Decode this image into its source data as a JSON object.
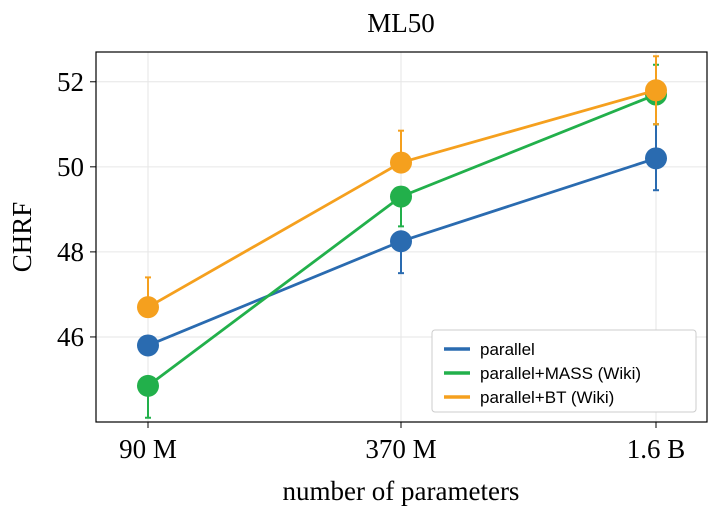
{
  "chart_data": {
    "type": "line",
    "title": "ML50",
    "xlabel": "number of parameters",
    "ylabel": "CHRF",
    "categories": [
      "90 M",
      "370 M",
      "1.6 B"
    ],
    "ylim": [
      44.0,
      52.7
    ],
    "yticks": [
      46,
      48,
      50,
      52
    ],
    "grid": true,
    "legend_position": "bottom-right",
    "series": [
      {
        "name": "parallel",
        "color": "#2a6bb0",
        "values": [
          45.8,
          48.25,
          50.2
        ],
        "err_low": [
          45.8,
          47.5,
          49.45
        ],
        "err_high": [
          45.8,
          48.25,
          51.0
        ]
      },
      {
        "name": "parallel+MASS (Wiki)",
        "color": "#22b04b",
        "values": [
          44.85,
          49.3,
          51.7
        ],
        "err_low": [
          44.1,
          48.6,
          51.0
        ],
        "err_high": [
          44.85,
          49.3,
          52.4
        ]
      },
      {
        "name": "parallel+BT (Wiki)",
        "color": "#f5a01e",
        "values": [
          46.7,
          50.1,
          51.8
        ],
        "err_low": [
          46.7,
          50.1,
          51.0
        ],
        "err_high": [
          47.4,
          50.85,
          52.6
        ]
      }
    ]
  }
}
